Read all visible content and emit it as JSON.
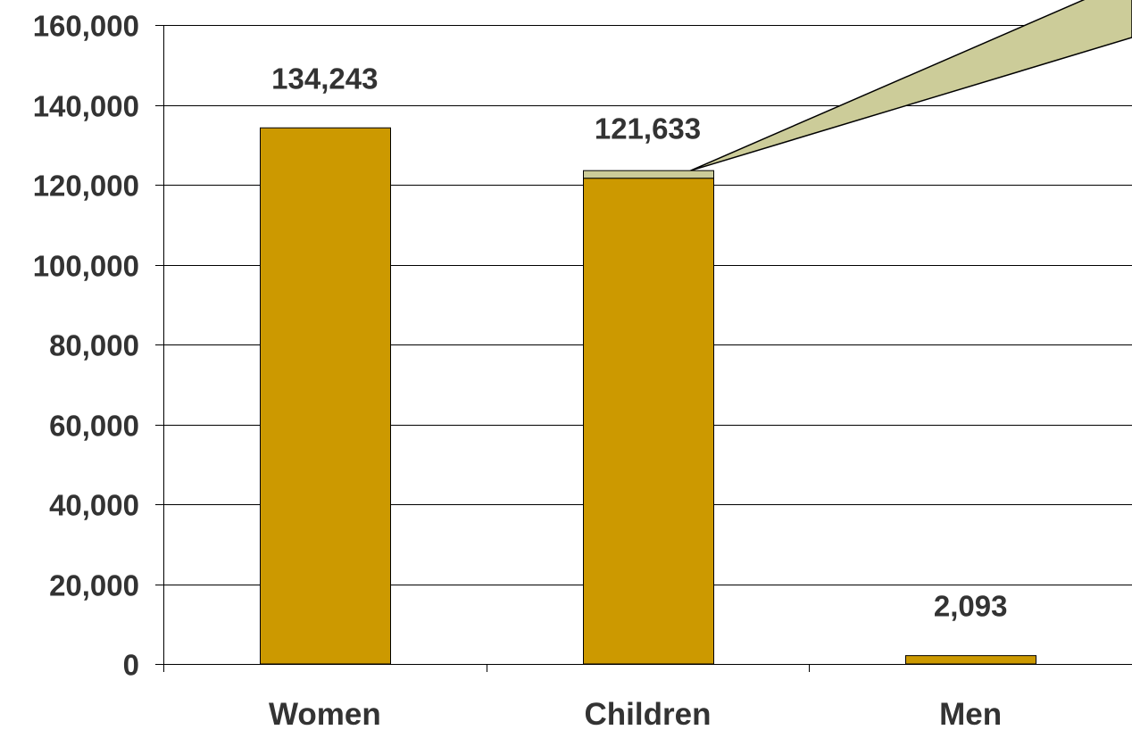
{
  "chart_data": {
    "type": "bar",
    "categories": [
      "Women",
      "Children",
      "Men"
    ],
    "series": [
      {
        "values": [
          134243,
          121633,
          2093
        ]
      },
      {
        "values": [
          0,
          1900,
          0
        ]
      }
    ],
    "data_labels": [
      "134,243",
      "121,633",
      "2,093"
    ],
    "ylim": [
      0,
      160000
    ],
    "y_ticks": [
      0,
      20000,
      40000,
      60000,
      80000,
      100000,
      120000,
      140000,
      160000
    ],
    "y_tick_labels": [
      "0",
      "20,000",
      "40,000",
      "60,000",
      "80,000",
      "100,000",
      "120,000",
      "140,000",
      "160,000"
    ],
    "grid": true,
    "title": "",
    "xlabel": "",
    "ylabel": "",
    "colors": {
      "bar": "#CC9900",
      "segment": "#CCCC99",
      "callout": "#CCCC99",
      "outline": "#000000",
      "grid": "#000000",
      "text": "#333333"
    }
  }
}
